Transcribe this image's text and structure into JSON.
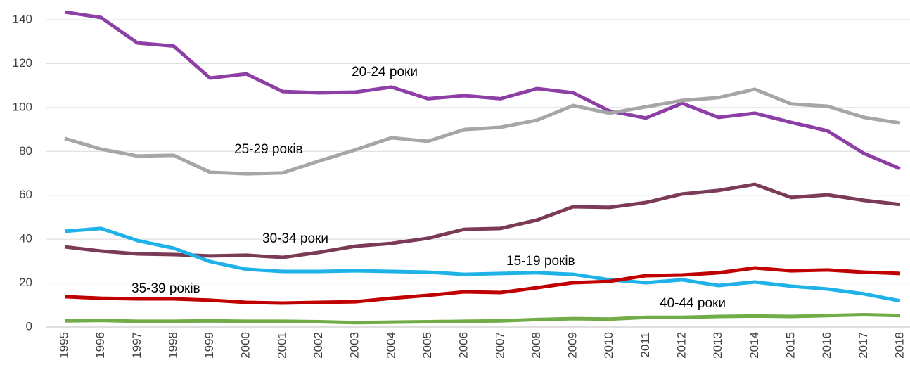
{
  "chart_data": {
    "type": "line",
    "categories": [
      "1995",
      "1996",
      "1997",
      "1998",
      "1999",
      "2000",
      "2001",
      "2002",
      "2003",
      "2004",
      "2005",
      "2006",
      "2007",
      "2008",
      "2009",
      "2010",
      "2011",
      "2012",
      "2013",
      "2014",
      "2015",
      "2016",
      "2017",
      "2018"
    ],
    "series": [
      {
        "name": "20-24 роки",
        "color": "#8e3fa6",
        "values": [
          143.5,
          141,
          129.4,
          128,
          113.4,
          115.3,
          107.3,
          106.7,
          107,
          109.3,
          104,
          105.4,
          104,
          108.6,
          106.7,
          98.4,
          95.2,
          101.9,
          95.5,
          97.4,
          93.2,
          89.4,
          79.1,
          72.1
        ]
      },
      {
        "name": "25-29 років",
        "color": "#a6a6a6",
        "values": [
          85.9,
          81,
          77.9,
          78.2,
          70.5,
          69.8,
          70.2,
          75.6,
          80.7,
          86.2,
          84.6,
          90,
          91,
          94.2,
          100.9,
          97.4,
          100.3,
          103.2,
          104.5,
          108.3,
          101.6,
          100.6,
          95.5,
          92.9
        ]
      },
      {
        "name": "30-34 роки",
        "color": "#7b3a55",
        "values": [
          36.5,
          34.6,
          33.3,
          33,
          32.4,
          32.7,
          31.7,
          34,
          36.8,
          38.1,
          40.4,
          44.5,
          44.9,
          48.7,
          54.8,
          54.5,
          56.7,
          60.6,
          62.2,
          65,
          59,
          60.2,
          57.7,
          55.8
        ]
      },
      {
        "name": "15-19 років",
        "color": "#1fb2e8",
        "values": [
          43.6,
          44.9,
          39.4,
          35.9,
          29.8,
          26.3,
          25.3,
          25.3,
          25.6,
          25.3,
          25,
          24,
          24.4,
          24.7,
          24,
          21.5,
          20.2,
          21.5,
          18.9,
          20.5,
          18.6,
          17.3,
          15.1,
          11.9
        ]
      },
      {
        "name": "35-39 років",
        "color": "#c00000",
        "values": [
          13.8,
          13.1,
          12.8,
          12.8,
          12.2,
          11.2,
          10.9,
          11.2,
          11.5,
          13.1,
          14.4,
          16,
          15.7,
          17.9,
          20.2,
          20.8,
          23.4,
          23.7,
          24.7,
          26.9,
          25.6,
          26,
          25,
          24.4
        ]
      },
      {
        "name": "40-44 роки",
        "color": "#70ad47",
        "values": [
          2.8,
          3,
          2.6,
          2.6,
          2.8,
          2.6,
          2.6,
          2.4,
          2,
          2.2,
          2.4,
          2.6,
          2.8,
          3.4,
          3.8,
          3.6,
          4.4,
          4.4,
          4.8,
          5,
          4.8,
          5.2,
          5.6,
          5.2
        ]
      }
    ],
    "ylim": [
      0,
      140
    ],
    "yticks": [
      0,
      20,
      40,
      60,
      80,
      100,
      120,
      140
    ],
    "grid": true
  }
}
